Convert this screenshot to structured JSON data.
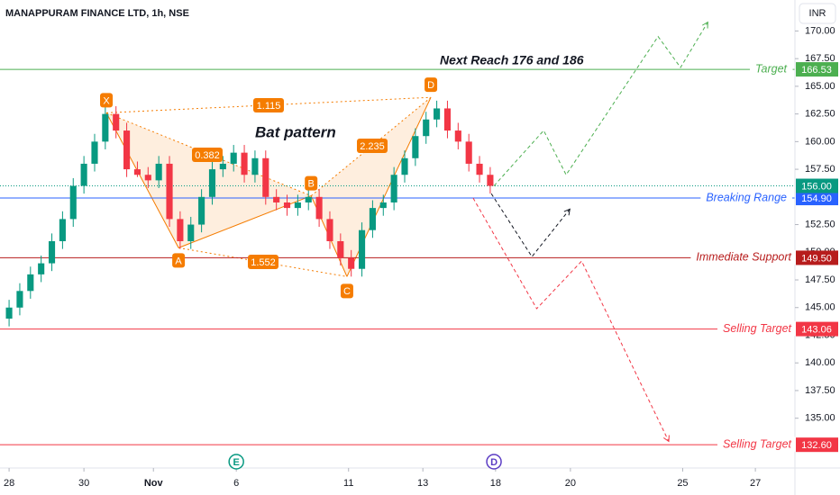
{
  "header": {
    "title": "MANAPPURAM FINANCE LTD, 1h, NSE",
    "currency": "INR"
  },
  "chart_data": {
    "type": "candlestick",
    "xlim": [
      -1.7,
      147
    ],
    "ylim": [
      130.5,
      172.8
    ],
    "xticks": [
      {
        "value": 0,
        "label": "28"
      },
      {
        "value": 14,
        "label": "30"
      },
      {
        "value": 27,
        "label": "Nov"
      },
      {
        "value": 42.5,
        "label": "6"
      },
      {
        "value": 63.5,
        "label": "11"
      },
      {
        "value": 77.4,
        "label": "13"
      },
      {
        "value": 91,
        "label": "18"
      },
      {
        "value": 105,
        "label": "20"
      },
      {
        "value": 126,
        "label": "25"
      },
      {
        "value": 139.6,
        "label": "27"
      }
    ],
    "yticks": [
      {
        "value": 135,
        "label": "135.00"
      },
      {
        "value": 137.5,
        "label": "137.50"
      },
      {
        "value": 140,
        "label": "140.00"
      },
      {
        "value": 142.5,
        "label": "142.50"
      },
      {
        "value": 145,
        "label": "145.00"
      },
      {
        "value": 147.5,
        "label": "147.50"
      },
      {
        "value": 150,
        "label": "150.00"
      },
      {
        "value": 152.5,
        "label": "152.50"
      },
      {
        "value": 157.5,
        "label": "157.50"
      },
      {
        "value": 160,
        "label": "160.00"
      },
      {
        "value": 162.5,
        "label": "162.50"
      },
      {
        "value": 165,
        "label": "165.00"
      },
      {
        "value": 167.5,
        "label": "167.50"
      },
      {
        "value": 170,
        "label": "170.00"
      }
    ],
    "x": [
      0,
      2,
      4,
      6,
      8,
      10,
      12,
      14,
      16,
      18,
      20,
      22,
      24,
      26,
      28,
      30,
      32,
      34,
      36,
      38,
      40,
      42,
      44,
      46,
      48,
      50,
      52,
      54,
      56,
      58,
      60,
      62,
      64,
      66,
      68,
      70,
      72,
      74,
      76,
      78,
      80,
      82,
      84,
      86,
      88,
      90
    ],
    "open": [
      144,
      145,
      146.5,
      148,
      149,
      151,
      153,
      156,
      158,
      160,
      162.5,
      161,
      157.5,
      157,
      156.5,
      158,
      153,
      151,
      152.5,
      155,
      157.5,
      158,
      159,
      157,
      158.5,
      155,
      154.5,
      154,
      154.5,
      155,
      153,
      151,
      149.5,
      148.5,
      152,
      154,
      154.5,
      157,
      158.5,
      160.5,
      162,
      163,
      161,
      160,
      158,
      157
    ],
    "high": [
      145.7,
      147.2,
      148.7,
      149.7,
      151.7,
      153.7,
      156.7,
      158.7,
      160.7,
      163.2,
      163.2,
      161.7,
      158.2,
      157.7,
      158.7,
      158.7,
      153.7,
      153.2,
      155.7,
      158.2,
      158.7,
      159.7,
      159.7,
      159.2,
      159.2,
      155.7,
      155.2,
      155.2,
      155.7,
      155.7,
      153.7,
      151.7,
      150.2,
      152.7,
      154.7,
      155.2,
      157.7,
      159.2,
      161.2,
      162.7,
      163.7,
      163.7,
      161.7,
      160.7,
      158.7,
      157.7
    ],
    "low": [
      143.3,
      144.3,
      145.8,
      147.3,
      148.3,
      150.3,
      152.3,
      155.3,
      157.3,
      159.3,
      160.3,
      156.8,
      156.8,
      155.8,
      155.8,
      152.3,
      150.3,
      150.3,
      151.8,
      154.3,
      156.8,
      157.3,
      156.3,
      156.3,
      154.3,
      153.8,
      153.3,
      153.3,
      153.8,
      152.3,
      150.3,
      148.8,
      147.8,
      147.8,
      151.3,
      153.3,
      153.8,
      156.3,
      157.8,
      159.8,
      161.3,
      160.3,
      159.3,
      157.3,
      156.3,
      155.3
    ],
    "close": [
      145,
      146.5,
      148,
      149,
      151,
      153,
      156,
      158,
      160,
      162.5,
      161,
      157.5,
      157,
      156.5,
      158,
      153,
      151,
      152.5,
      155,
      157.5,
      158,
      159,
      157,
      158.5,
      155,
      154.5,
      154,
      154.5,
      155,
      153,
      151,
      149.5,
      148.5,
      152,
      154,
      154.5,
      157,
      158.5,
      160.5,
      162,
      163,
      161,
      160,
      158,
      157,
      156
    ],
    "up_color": "#089981",
    "down_color": "#f23645",
    "last_price": 156,
    "last_price_label": "156.00",
    "last_price_color": "#089981",
    "levels": {
      "names": [
        "Target",
        "Breaking Range",
        "Immediate Support",
        "Selling Target",
        "Selling Target"
      ],
      "values": [
        166.53,
        154.9,
        149.5,
        143.06,
        132.6
      ],
      "value_labels": [
        "166.53",
        "154.90",
        "149.50",
        "143.06",
        "132.60"
      ],
      "colors": [
        "#4caf50",
        "#2962ff",
        "#b71c1c",
        "#f23645",
        "#f23645"
      ]
    },
    "pattern": {
      "title": "Bat pattern",
      "color": "#f57c00",
      "labels": [
        "X",
        "A",
        "B",
        "C",
        "D"
      ],
      "x": [
        18.2,
        31.7,
        56.5,
        63.2,
        78.9
      ],
      "y": [
        162.6,
        150.4,
        155.1,
        147.8,
        164
      ],
      "ratios": [
        "1.115",
        "0.382",
        "2.235",
        "1.552"
      ]
    },
    "note": "Next Reach 176 and 186",
    "projections": [
      {
        "color": "#4caf50",
        "x": [
          90.7,
          100,
          104.2,
          121.4,
          125.6,
          130.7
        ],
        "y": [
          156,
          161,
          157,
          169.5,
          166.7,
          170.8
        ]
      },
      {
        "color": "#131722",
        "x": [
          90.2,
          97.8,
          104.9
        ],
        "y": [
          155.3,
          149.6,
          153.9
        ]
      },
      {
        "color": "#f23645",
        "x": [
          86.8,
          98.7,
          107.1,
          123.4
        ],
        "y": [
          154.9,
          144.9,
          149.2,
          132.9
        ]
      }
    ],
    "events": {
      "labels": [
        "E",
        "D"
      ],
      "x": [
        42.5,
        90.7
      ],
      "colors": [
        "#089981",
        "#5b3cc4"
      ]
    }
  }
}
